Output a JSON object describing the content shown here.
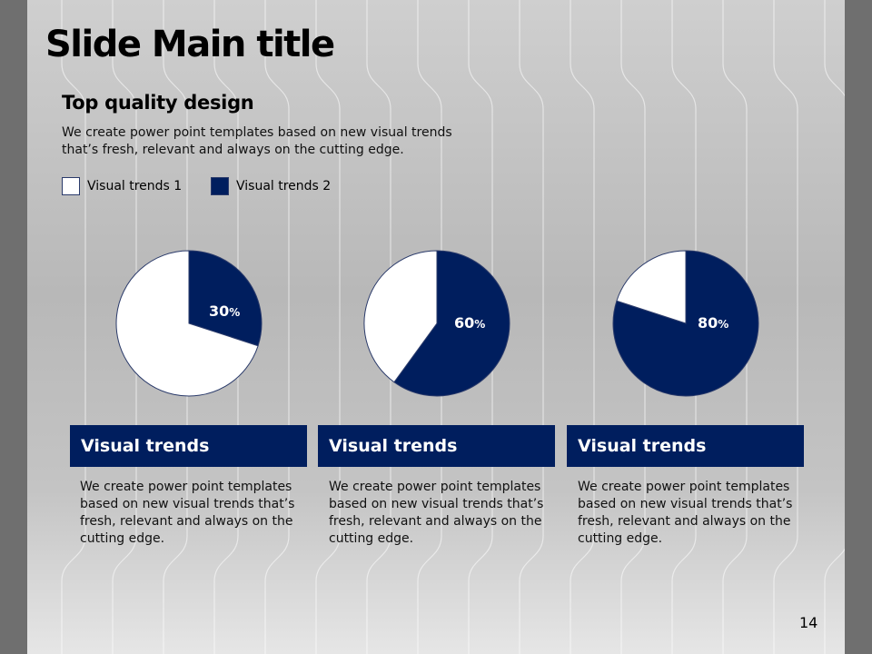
{
  "slide": {
    "title": "Slide Main title",
    "subtitle": "Top quality design",
    "description": "We create power point templates based on new visual trends that’s fresh, relevant and always on the cutting edge.",
    "page_number": "14"
  },
  "legend": [
    {
      "label": "Visual trends 1",
      "color": "#ffffff"
    },
    {
      "label": "Visual trends 2",
      "color": "#001e5e"
    }
  ],
  "chart_data": [
    {
      "type": "pie",
      "title": "",
      "slices": [
        {
          "name": "Visual trends 2",
          "value": 30,
          "color": "#001e5e"
        },
        {
          "name": "Visual trends 1",
          "value": 70,
          "color": "#ffffff"
        }
      ],
      "data_label": "30",
      "unit": "%"
    },
    {
      "type": "pie",
      "title": "",
      "slices": [
        {
          "name": "Visual trends 2",
          "value": 60,
          "color": "#001e5e"
        },
        {
          "name": "Visual trends 1",
          "value": 40,
          "color": "#ffffff"
        }
      ],
      "data_label": "60",
      "unit": "%"
    },
    {
      "type": "pie",
      "title": "",
      "slices": [
        {
          "name": "Visual trends 2",
          "value": 80,
          "color": "#001e5e"
        },
        {
          "name": "Visual trends 1",
          "value": 20,
          "color": "#ffffff"
        }
      ],
      "data_label": "80",
      "unit": "%"
    }
  ],
  "cards": [
    {
      "heading": "Visual trends",
      "text": "We create power point templates based on new visual trends that’s fresh, relevant and always on the cutting edge."
    },
    {
      "heading": "Visual trends",
      "text": "We create power point templates based on new visual trends that’s fresh, relevant and always on the cutting edge."
    },
    {
      "heading": "Visual trends",
      "text": "We create power point templates based on new visual trends that’s fresh, relevant and always on the cutting edge."
    }
  ],
  "colors": {
    "accent": "#001e5e",
    "outer_background": "#6f6f6f"
  }
}
